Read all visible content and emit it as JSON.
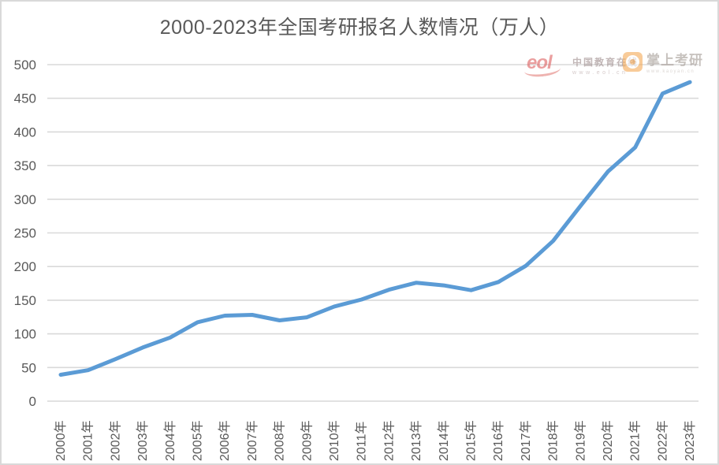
{
  "header": {
    "title": "2000-2023年全国考研报名人数情况（万人）"
  },
  "watermarks": {
    "eol": {
      "logo_text": "eol",
      "name": "中国教育在线",
      "url": "www.eol.cn",
      "color": "#dd5f5f"
    },
    "kaoyan": {
      "name": "掌上考研",
      "url": "www.kaoyan.cn",
      "icon_color": "#f5aa57"
    }
  },
  "chart_data": {
    "type": "line",
    "title": "2000-2023年全国考研报名人数情况（万人）",
    "categories": [
      "2000年",
      "2001年",
      "2002年",
      "2003年",
      "2004年",
      "2005年",
      "2006年",
      "2007年",
      "2008年",
      "2009年",
      "2010年",
      "2011年",
      "2012年",
      "2013年",
      "2014年",
      "2015年",
      "2016年",
      "2017年",
      "2018年",
      "2019年",
      "2020年",
      "2021年",
      "2022年",
      "2023年"
    ],
    "values": [
      39.2,
      46,
      62.4,
      79.7,
      94.5,
      117.2,
      127.1,
      128.2,
      120,
      124.6,
      140.6,
      151.1,
      165.6,
      176,
      172,
      164.9,
      177,
      201,
      238,
      290,
      341,
      377,
      457,
      474
    ],
    "xlabel": "",
    "ylabel": "",
    "ylim": [
      0,
      500
    ],
    "ytick_step": 50,
    "yticks": [
      0,
      50,
      100,
      150,
      200,
      250,
      300,
      350,
      400,
      450,
      500
    ],
    "legend": "none",
    "grid": "horizontal",
    "line_color": "#5B9BD5",
    "gridline_color": "#D9D9D9",
    "axis_text_color": "#595959"
  }
}
